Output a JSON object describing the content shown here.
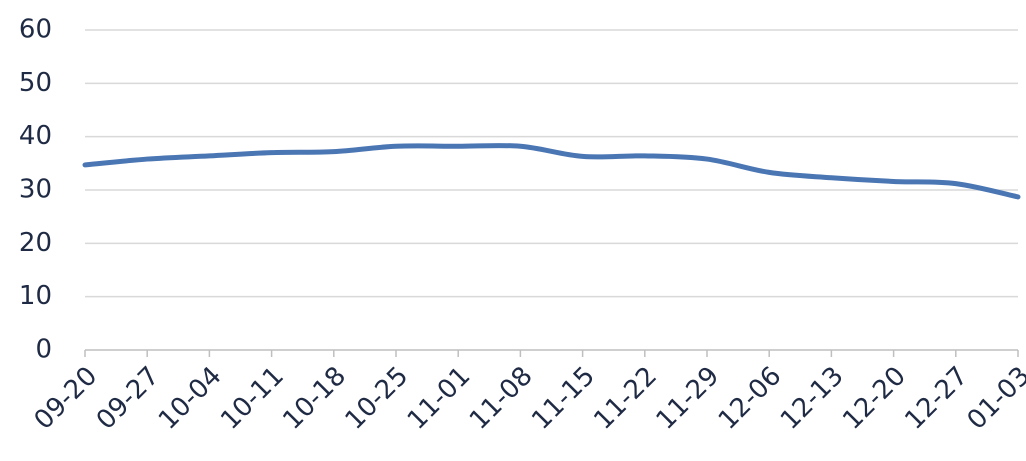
{
  "chart_data": {
    "type": "line",
    "categories": [
      "09-20",
      "09-27",
      "10-04",
      "10-11",
      "10-18",
      "10-25",
      "11-01",
      "11-08",
      "11-15",
      "11-22",
      "11-29",
      "12-06",
      "12-13",
      "12-20",
      "12-27",
      "01-03"
    ],
    "series": [
      {
        "color": "#4a76b4",
        "values": [
          34.7,
          35.8,
          36.4,
          37.0,
          37.2,
          38.2,
          38.2,
          38.2,
          36.3,
          36.4,
          35.8,
          33.3,
          32.3,
          31.6,
          31.2,
          28.7
        ]
      }
    ],
    "ylim": [
      0,
      60
    ],
    "yticks": [
      0,
      10,
      20,
      30,
      40,
      50,
      60
    ],
    "grid": true
  }
}
